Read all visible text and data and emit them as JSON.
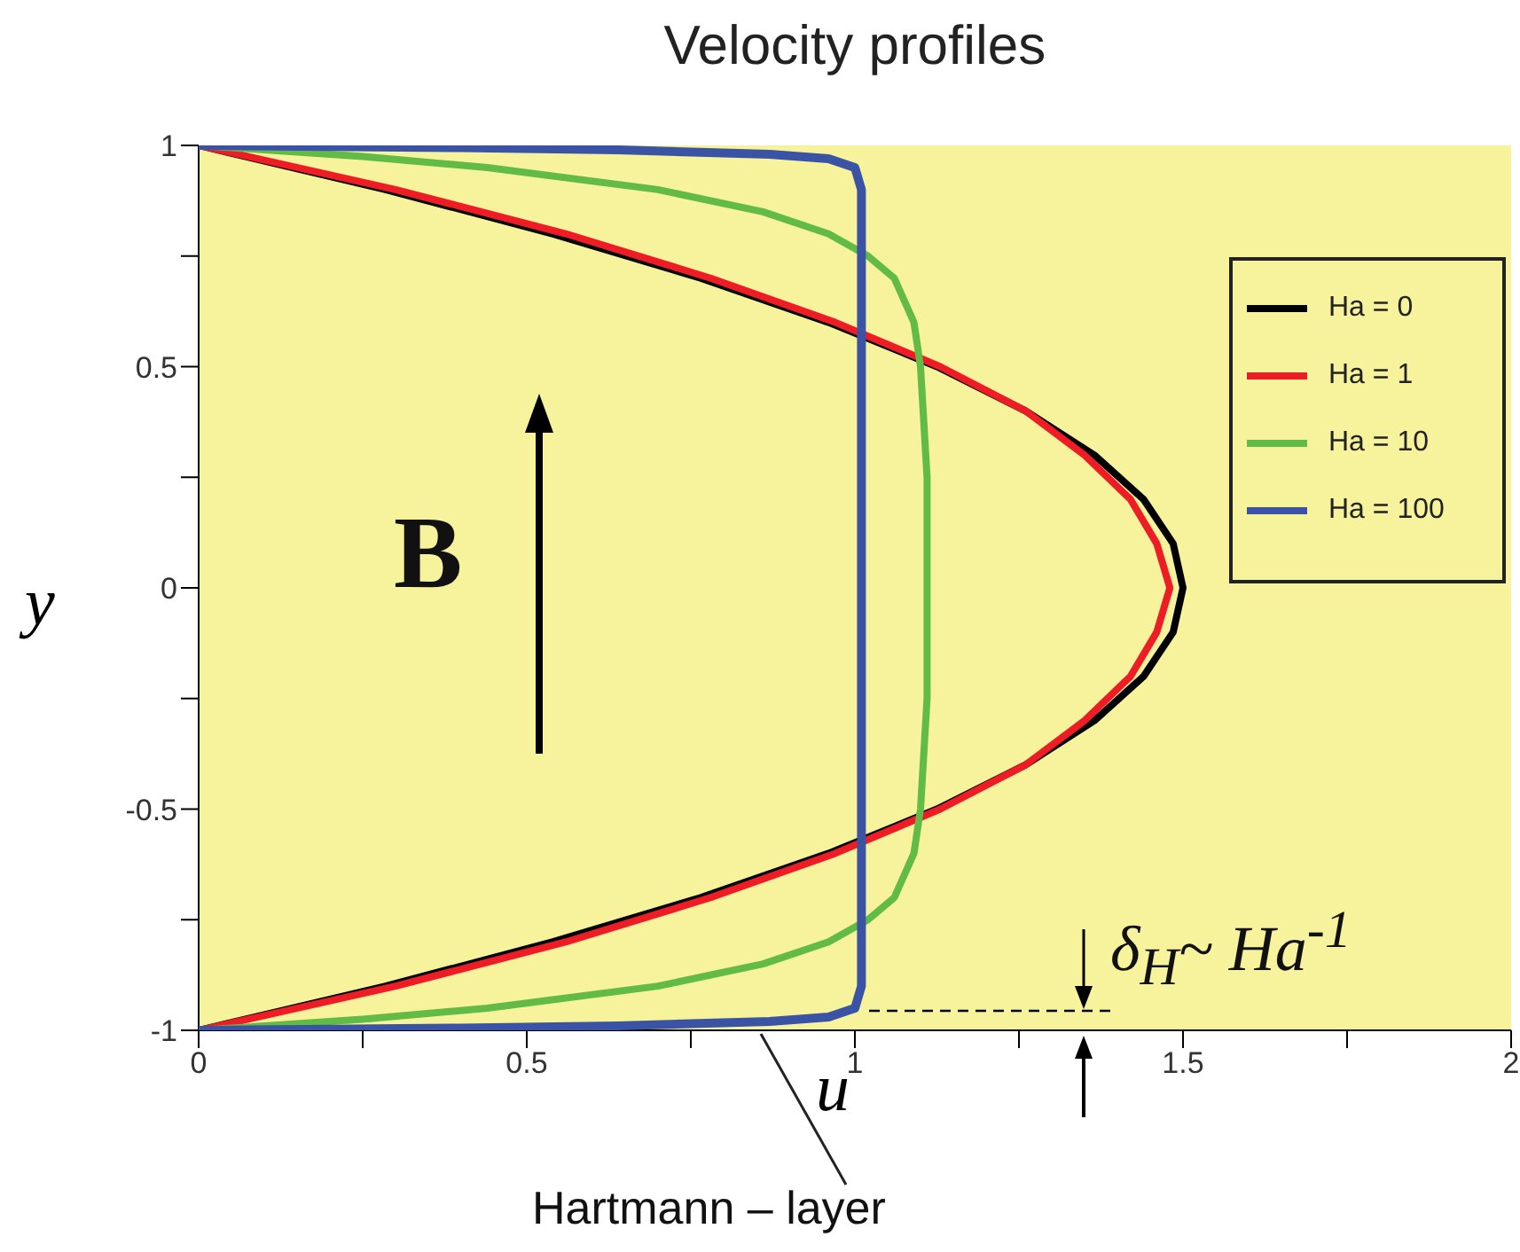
{
  "chart_data": {
    "type": "line",
    "title": "Velocity profiles",
    "xlabel": "u",
    "ylabel": "y",
    "xlim": [
      0,
      2
    ],
    "ylim": [
      -1,
      1
    ],
    "xticks": [
      0,
      {
        "value": 0.25,
        "label": null
      },
      0.5,
      {
        "value": 0.75,
        "label": null
      },
      1,
      {
        "value": 1.25,
        "label": null
      },
      1.5,
      {
        "value": 1.75,
        "label": null
      },
      2
    ],
    "yticks": [
      -1,
      {
        "value": -0.75,
        "label": null
      },
      -0.5,
      {
        "value": -0.25,
        "label": null
      },
      0,
      {
        "value": 0.25,
        "label": null
      },
      0.5,
      {
        "value": 0.75,
        "label": null
      },
      1
    ],
    "legend": "top right",
    "annotations": [
      "B",
      "δ$_{H}$~ Ha$^{-1}$",
      "Hartmann – layer"
    ],
    "series": [
      {
        "name": "Ha = 0",
        "color": "#000000",
        "x": [
          0,
          0.285,
          0.54,
          0.765,
          0.96,
          1.125,
          1.26,
          1.365,
          1.44,
          1.485,
          1.5,
          1.485,
          1.44,
          1.365,
          1.26,
          1.125,
          0.96,
          0.765,
          0.54,
          0.285,
          0
        ],
        "values": [
          -1,
          -0.9,
          -0.8,
          -0.7,
          -0.6,
          -0.5,
          -0.4,
          -0.3,
          -0.2,
          -0.1,
          0,
          0.1,
          0.2,
          0.3,
          0.4,
          0.5,
          0.6,
          0.7,
          0.8,
          0.9,
          1
        ]
      },
      {
        "name": "Ha = 1",
        "color": "#ee1c24",
        "x": [
          0,
          0.3,
          0.56,
          0.78,
          0.97,
          1.13,
          1.26,
          1.35,
          1.42,
          1.46,
          1.48,
          1.46,
          1.42,
          1.35,
          1.26,
          1.13,
          0.97,
          0.78,
          0.56,
          0.3,
          0
        ],
        "values": [
          -1,
          -0.9,
          -0.8,
          -0.7,
          -0.6,
          -0.5,
          -0.4,
          -0.3,
          -0.2,
          -0.1,
          0,
          0.1,
          0.2,
          0.3,
          0.4,
          0.5,
          0.6,
          0.7,
          0.8,
          0.9,
          1
        ]
      },
      {
        "name": "Ha = 10",
        "color": "#62bb46",
        "x": [
          0,
          0.25,
          0.44,
          0.7,
          0.86,
          0.96,
          1.02,
          1.06,
          1.09,
          1.1,
          1.11,
          1.11,
          1.11,
          1.1,
          1.09,
          1.06,
          1.02,
          0.96,
          0.86,
          0.7,
          0.44,
          0.25,
          0
        ],
        "values": [
          -1,
          -0.975,
          -0.95,
          -0.9,
          -0.85,
          -0.8,
          -0.75,
          -0.7,
          -0.6,
          -0.5,
          -0.25,
          0,
          0.25,
          0.5,
          0.6,
          0.7,
          0.75,
          0.8,
          0.85,
          0.9,
          0.95,
          0.975,
          1
        ]
      },
      {
        "name": "Ha = 100",
        "color": "#3a53a4",
        "x": [
          0,
          0.4,
          0.64,
          0.87,
          0.96,
          1.0,
          1.01,
          1.01,
          1.01,
          1.0,
          0.96,
          0.87,
          0.64,
          0.4,
          0
        ],
        "values": [
          -1,
          -0.995,
          -0.99,
          -0.98,
          -0.97,
          -0.95,
          -0.9,
          0,
          0.9,
          0.95,
          0.97,
          0.98,
          0.99,
          0.995,
          1
        ]
      }
    ]
  }
}
